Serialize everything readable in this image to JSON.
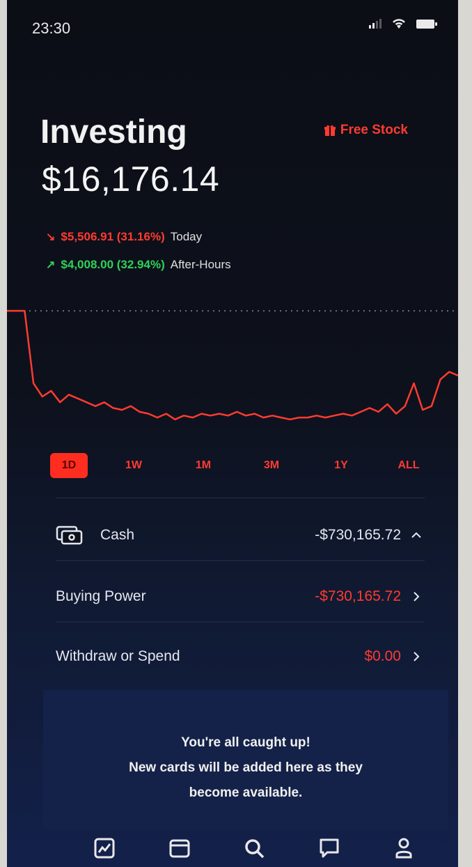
{
  "status_bar": {
    "time": "23:30"
  },
  "header": {
    "title": "Investing",
    "free_stock": "Free Stock"
  },
  "portfolio": {
    "value": "$16,176.14",
    "today_change": "$5,506.91 (31.16%)",
    "today_label": "Today",
    "after_hours_change": "$4,008.00 (32.94%)",
    "after_hours_label": "After-Hours"
  },
  "chart_data": {
    "type": "line",
    "series": [
      {
        "values": [
          100,
          100,
          100,
          62,
          55,
          58,
          52,
          56,
          54,
          52,
          50,
          52,
          49,
          48,
          50,
          47,
          46,
          44,
          46,
          43,
          45,
          44,
          46,
          45,
          46,
          45,
          47,
          45,
          46,
          44,
          45,
          44,
          43,
          44,
          44,
          45,
          44,
          45,
          46,
          45,
          47,
          49,
          47,
          51,
          46,
          50,
          62,
          48,
          50,
          64,
          68,
          66
        ]
      }
    ],
    "reference_line": "previous-close dotted line",
    "color": "#ff3b30"
  },
  "ranges": {
    "items": [
      "1D",
      "1W",
      "1M",
      "3M",
      "1Y",
      "ALL"
    ],
    "active": "1D"
  },
  "cash": {
    "label": "Cash",
    "value": "-$730,165.72",
    "buying_power_label": "Buying Power",
    "buying_power_value": "-$730,165.72",
    "withdraw_label": "Withdraw or Spend",
    "withdraw_value": "$0.00"
  },
  "card": {
    "line1": "You're all caught up!",
    "line2": "New cards will be added here as they",
    "line3": "become available."
  },
  "tab_bar": {
    "icons": [
      "chart-icon",
      "wallet-icon",
      "search-icon",
      "messages-icon",
      "account-icon"
    ]
  },
  "colors": {
    "accent": "#ff3b30",
    "positive": "#2fd158",
    "background": "#0c0e16"
  }
}
